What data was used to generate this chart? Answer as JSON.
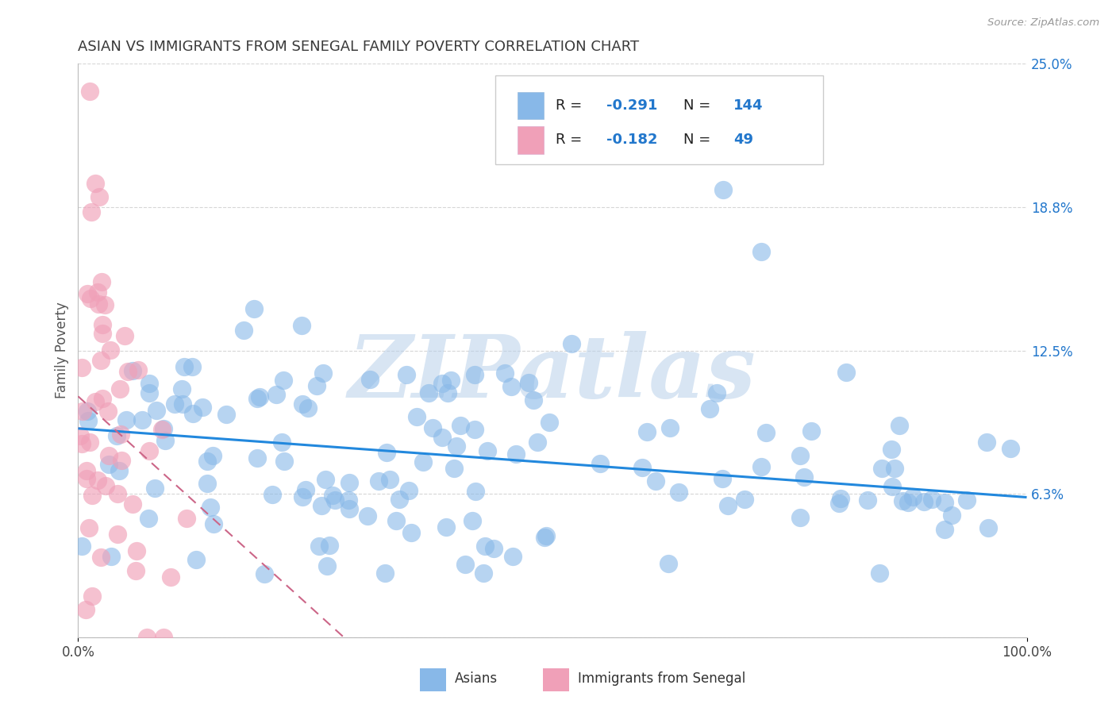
{
  "title": "ASIAN VS IMMIGRANTS FROM SENEGAL FAMILY POVERTY CORRELATION CHART",
  "source_text": "Source: ZipAtlas.com",
  "ylabel": "Family Poverty",
  "xlim": [
    0,
    1.0
  ],
  "ylim": [
    0,
    0.25
  ],
  "ytick_vals": [
    0.0,
    0.0625,
    0.125,
    0.1875,
    0.25
  ],
  "ytick_labels": [
    "",
    "6.3%",
    "12.5%",
    "18.8%",
    "25.0%"
  ],
  "title_color": "#3a3a3a",
  "title_fontsize": 13,
  "watermark_text": "ZIPatlas",
  "watermark_color": "#b8d0ea",
  "asian_color": "#88b8e8",
  "senegal_color": "#f0a0b8",
  "legend_r_asian": "-0.291",
  "legend_n_asian": "144",
  "legend_r_senegal": "-0.182",
  "legend_n_senegal": "49",
  "asian_R": -0.291,
  "asian_N": 144,
  "senegal_R": -0.182,
  "senegal_N": 49,
  "blue_line_start_x": 0.0,
  "blue_line_start_y": 0.091,
  "blue_line_end_x": 1.0,
  "blue_line_end_y": 0.061,
  "pink_line_start_x": 0.0,
  "pink_line_start_y": 0.105,
  "pink_line_end_x": 0.28,
  "pink_line_end_y": 0.0,
  "grid_color": "#cccccc",
  "background_color": "#ffffff",
  "source_color": "#999999"
}
